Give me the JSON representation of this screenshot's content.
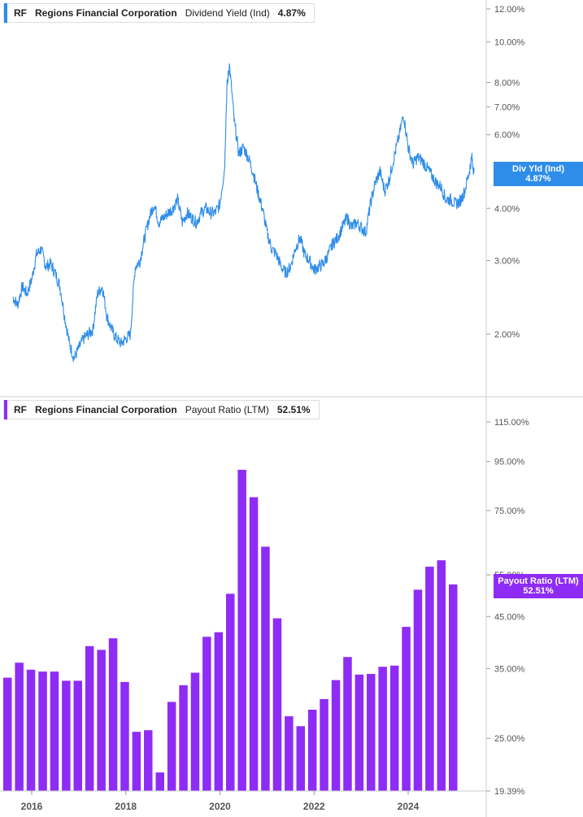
{
  "colors": {
    "blue": "#2e8de8",
    "purple": "#8e2cf5",
    "grid": "#d9d9d9",
    "tick_text": "#555555"
  },
  "top_legend": {
    "ticker": "RF",
    "company": "Regions Financial Corporation",
    "metric": "Dividend Yield (Ind)",
    "value": "4.87%"
  },
  "bottom_legend": {
    "ticker": "RF",
    "company": "Regions Financial Corporation",
    "metric": "Payout Ratio (LTM)",
    "value": "52.51%"
  },
  "top_tag": {
    "label": "Div Yld (Ind)",
    "value": "4.87%"
  },
  "bottom_tag": {
    "label": "Payout Ratio (LTM)",
    "value": "52.51%"
  },
  "chart_data": [
    {
      "type": "line",
      "scale": "log",
      "series_label": "Dividend Yield (Ind)",
      "ylim": [
        1.6,
        12.5
      ],
      "y_ticks": [
        "12.00%",
        "10.00%",
        "8.00%",
        "7.00%",
        "6.00%",
        "4.00%",
        "3.00%",
        "2.00%"
      ],
      "y_tick_values": [
        12,
        10,
        8,
        7,
        6,
        4,
        3,
        2
      ],
      "x_range": [
        2015.6,
        2025.5
      ],
      "x": [
        2015.6,
        2015.7,
        2015.8,
        2015.9,
        2016.0,
        2016.1,
        2016.2,
        2016.3,
        2016.4,
        2016.5,
        2016.6,
        2016.7,
        2016.8,
        2016.9,
        2017.0,
        2017.1,
        2017.2,
        2017.3,
        2017.4,
        2017.5,
        2017.6,
        2017.7,
        2017.8,
        2017.9,
        2018.0,
        2018.1,
        2018.2,
        2018.3,
        2018.4,
        2018.5,
        2018.6,
        2018.7,
        2018.8,
        2018.9,
        2019.0,
        2019.1,
        2019.2,
        2019.3,
        2019.4,
        2019.5,
        2019.6,
        2019.7,
        2019.8,
        2019.9,
        2020.0,
        2020.1,
        2020.15,
        2020.2,
        2020.3,
        2020.4,
        2020.5,
        2020.6,
        2020.7,
        2020.8,
        2020.9,
        2021.0,
        2021.1,
        2021.2,
        2021.3,
        2021.4,
        2021.5,
        2021.6,
        2021.7,
        2021.8,
        2021.9,
        2022.0,
        2022.1,
        2022.2,
        2022.3,
        2022.4,
        2022.5,
        2022.6,
        2022.7,
        2022.8,
        2022.9,
        2023.0,
        2023.1,
        2023.2,
        2023.3,
        2023.4,
        2023.5,
        2023.6,
        2023.7,
        2023.8,
        2023.9,
        2024.0,
        2024.1,
        2024.2,
        2024.3,
        2024.4,
        2024.5,
        2024.6,
        2024.7,
        2024.8,
        2024.9,
        2025.0,
        2025.1,
        2025.2,
        2025.3,
        2025.35,
        2025.4
      ],
      "values": [
        2.45,
        2.35,
        2.6,
        2.5,
        2.7,
        3.1,
        3.2,
        2.9,
        2.95,
        2.8,
        2.6,
        2.2,
        1.9,
        1.75,
        1.85,
        1.95,
        2.0,
        2.05,
        2.5,
        2.6,
        2.2,
        2.05,
        1.95,
        1.9,
        1.95,
        2.0,
        2.9,
        3.0,
        3.4,
        3.8,
        4.1,
        3.7,
        3.8,
        3.9,
        4.0,
        4.2,
        3.7,
        3.9,
        3.8,
        3.7,
        3.9,
        4.0,
        3.9,
        3.9,
        4.1,
        5.0,
        7.8,
        8.8,
        6.5,
        5.4,
        5.6,
        5.3,
        4.9,
        4.4,
        4.0,
        3.5,
        3.2,
        3.1,
        2.9,
        2.8,
        2.9,
        3.2,
        3.4,
        3.1,
        3.0,
        2.85,
        2.9,
        2.95,
        3.1,
        3.3,
        3.4,
        3.6,
        3.8,
        3.6,
        3.7,
        3.6,
        3.5,
        4.1,
        4.6,
        4.9,
        4.4,
        4.7,
        5.3,
        5.9,
        6.7,
        5.6,
        5.1,
        5.3,
        5.2,
        5.0,
        4.8,
        4.6,
        4.5,
        4.2,
        4.2,
        4.1,
        4.15,
        4.4,
        4.9,
        5.3,
        4.87
      ]
    },
    {
      "type": "bar",
      "scale": "log",
      "series_label": "Payout Ratio (LTM)",
      "ylim": [
        19.39,
        115
      ],
      "y_ticks": [
        "115.00%",
        "95.00%",
        "75.00%",
        "55.00%",
        "45.00%",
        "35.00%",
        "25.00%",
        "19.39%"
      ],
      "y_tick_values": [
        115,
        95,
        75,
        55,
        45,
        35,
        25,
        19.39
      ],
      "x_range": [
        2015.6,
        2025.5
      ],
      "x_ticks": [
        "2016",
        "2018",
        "2020",
        "2022",
        "2024"
      ],
      "x_tick_values": [
        2016,
        2018,
        2020,
        2022,
        2024
      ],
      "x": [
        2015.75,
        2016.0,
        2016.25,
        2016.5,
        2016.75,
        2017.0,
        2017.25,
        2017.5,
        2017.75,
        2018.0,
        2018.25,
        2018.5,
        2018.75,
        2019.0,
        2019.25,
        2019.5,
        2019.75,
        2020.0,
        2020.25,
        2020.5,
        2020.75,
        2021.0,
        2021.25,
        2021.5,
        2021.75,
        2022.0,
        2022.25,
        2022.5,
        2022.75,
        2023.0,
        2023.25,
        2023.5,
        2023.75,
        2024.0,
        2024.25,
        2024.5,
        2024.75,
        2025.0,
        2025.25
      ],
      "values": [
        33.5,
        36.0,
        34.8,
        34.5,
        34.5,
        33.0,
        33.0,
        39.0,
        38.3,
        40.5,
        32.8,
        25.8,
        26.0,
        21.2,
        29.8,
        32.3,
        34.3,
        40.8,
        41.7,
        50.2,
        91.3,
        80.0,
        63.0,
        44.6,
        27.8,
        26.5,
        28.7,
        30.2,
        33.1,
        37.0,
        34.0,
        34.1,
        35.3,
        35.5,
        42.8,
        51.2,
        57.2,
        59.0,
        52.51
      ]
    }
  ],
  "axis_labels": {
    "top_ticks": [
      "12.00%",
      "10.00%",
      "8.00%",
      "7.00%",
      "6.00%",
      "4.00%",
      "3.00%",
      "2.00%"
    ],
    "bottom_ticks": [
      "115.00%",
      "95.00%",
      "75.00%",
      "55.00%",
      "45.00%",
      "35.00%",
      "25.00%",
      "19.39%"
    ],
    "x_ticks": [
      "2016",
      "2018",
      "2020",
      "2022",
      "2024"
    ]
  }
}
